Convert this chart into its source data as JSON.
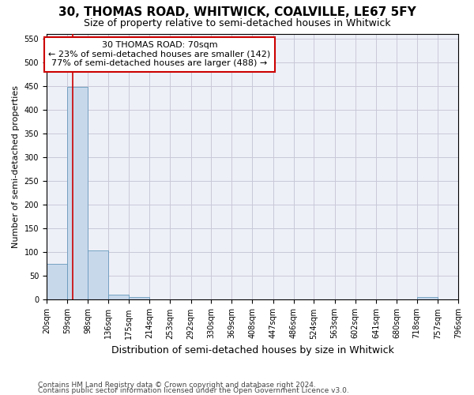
{
  "title1": "30, THOMAS ROAD, WHITWICK, COALVILLE, LE67 5FY",
  "title2": "Size of property relative to semi-detached houses in Whitwick",
  "xlabel": "Distribution of semi-detached houses by size in Whitwick",
  "ylabel": "Number of semi-detached properties",
  "footnote1": "Contains HM Land Registry data © Crown copyright and database right 2024.",
  "footnote2": "Contains public sector information licensed under the Open Government Licence v3.0.",
  "annotation_title": "30 THOMAS ROAD: 70sqm",
  "annotation_line1": "← 23% of semi-detached houses are smaller (142)",
  "annotation_line2": "77% of semi-detached houses are larger (488) →",
  "property_size": 70,
  "bin_edges": [
    20,
    59,
    98,
    136,
    175,
    214,
    253,
    292,
    330,
    369,
    408,
    447,
    486,
    524,
    563,
    602,
    641,
    680,
    718,
    757,
    796
  ],
  "bin_counts": [
    75,
    447,
    104,
    10,
    5,
    0,
    0,
    0,
    0,
    0,
    0,
    0,
    0,
    0,
    0,
    0,
    0,
    0,
    5,
    0
  ],
  "bar_color": "#c8d8eb",
  "bar_edge_color": "#6699bb",
  "red_line_color": "#cc0000",
  "annotation_box_edge_color": "#cc0000",
  "grid_color": "#c8c8d8",
  "bg_color": "#eef0f8",
  "ylim": [
    0,
    560
  ],
  "yticks": [
    0,
    50,
    100,
    150,
    200,
    250,
    300,
    350,
    400,
    450,
    500,
    550
  ],
  "title1_fontsize": 11,
  "title2_fontsize": 9,
  "ylabel_fontsize": 8,
  "xlabel_fontsize": 9,
  "tick_fontsize": 7,
  "annot_fontsize": 8,
  "footnote_fontsize": 6.5
}
